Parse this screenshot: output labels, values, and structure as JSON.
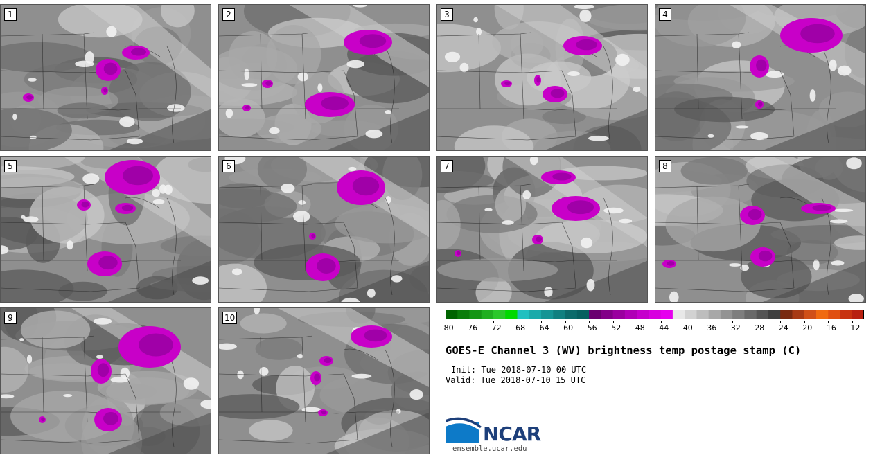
{
  "stamps": [
    {
      "label": "1"
    },
    {
      "label": "2"
    },
    {
      "label": "3"
    },
    {
      "label": "4"
    },
    {
      "label": "5"
    },
    {
      "label": "6"
    },
    {
      "label": "7"
    },
    {
      "label": "8"
    },
    {
      "label": "9"
    },
    {
      "label": "10"
    }
  ],
  "colorbar": {
    "ticks": [
      "−80",
      "−76",
      "−72",
      "−68",
      "−64",
      "−60",
      "−56",
      "−52",
      "−48",
      "−44",
      "−40",
      "−36",
      "−32",
      "−28",
      "−24",
      "−20",
      "−16",
      "−12"
    ],
    "min": -80,
    "max": -10,
    "step": 2,
    "colors": [
      "#006400",
      "#0a7d0a",
      "#159615",
      "#20af20",
      "#2bc82b",
      "#00d900",
      "#20c0c0",
      "#1aaaaa",
      "#159595",
      "#108080",
      "#0b6b6b",
      "#066060",
      "#6a0070",
      "#820088",
      "#9a009f",
      "#b000b6",
      "#c500cc",
      "#d800df",
      "#e600ee",
      "#e8e8e8",
      "#d2d2d2",
      "#bdbdbd",
      "#a8a8a8",
      "#939393",
      "#7e7e7e",
      "#696969",
      "#545454",
      "#3f3f3f",
      "#7a2a10",
      "#a83a14",
      "#d05018",
      "#f06a10",
      "#e05010",
      "#c83210",
      "#b82010"
    ]
  },
  "title": "GOES-E Channel 3 (WV) brightness temp postage stamp (C)",
  "init": "Init: Tue 2018-07-10 00 UTC",
  "valid": "Valid: Tue 2018-07-10 15 UTC",
  "logo": {
    "text": "NCAR",
    "color": "#1d3f7a",
    "swoosh": "#0d7ac8"
  },
  "site": "ensemble.ucar.edu"
}
